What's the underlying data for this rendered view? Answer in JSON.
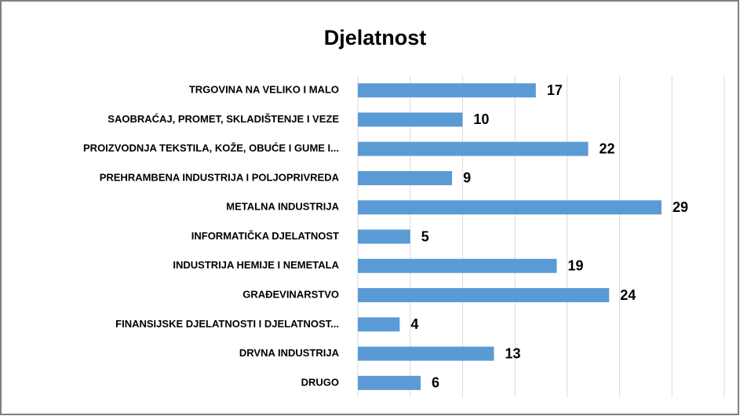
{
  "chart_data": {
    "type": "bar",
    "orientation": "horizontal",
    "title": "Djelatnost",
    "categories": [
      "TRGOVINA NA VELIKO I MALO",
      "SAOBRAĆAJ, PROMET, SKLADIŠTENJE I VEZE",
      "PROIZVODNJA TEKSTILA, KOŽE, OBUĆE I GUME I...",
      "PREHRAMBENA INDUSTRIJA I POLJOPRIVREDA",
      "METALNA INDUSTRIJA",
      "INFORMATIČKA DJELATNOST",
      "INDUSTRIJA HEMIJE I NEMETALA",
      "GRAĐEVINARSTVO",
      "FINANSIJSKE DJELATNOSTI I DJELATNOST...",
      "DRVNA INDUSTRIJA",
      "DRUGO"
    ],
    "values": [
      17,
      10,
      22,
      9,
      29,
      5,
      19,
      24,
      4,
      13,
      6
    ],
    "color": "#5b9bd5",
    "xlim": [
      0,
      35
    ],
    "xticks": [
      0,
      5,
      10,
      15,
      20,
      25,
      30,
      35
    ],
    "grid": true
  }
}
